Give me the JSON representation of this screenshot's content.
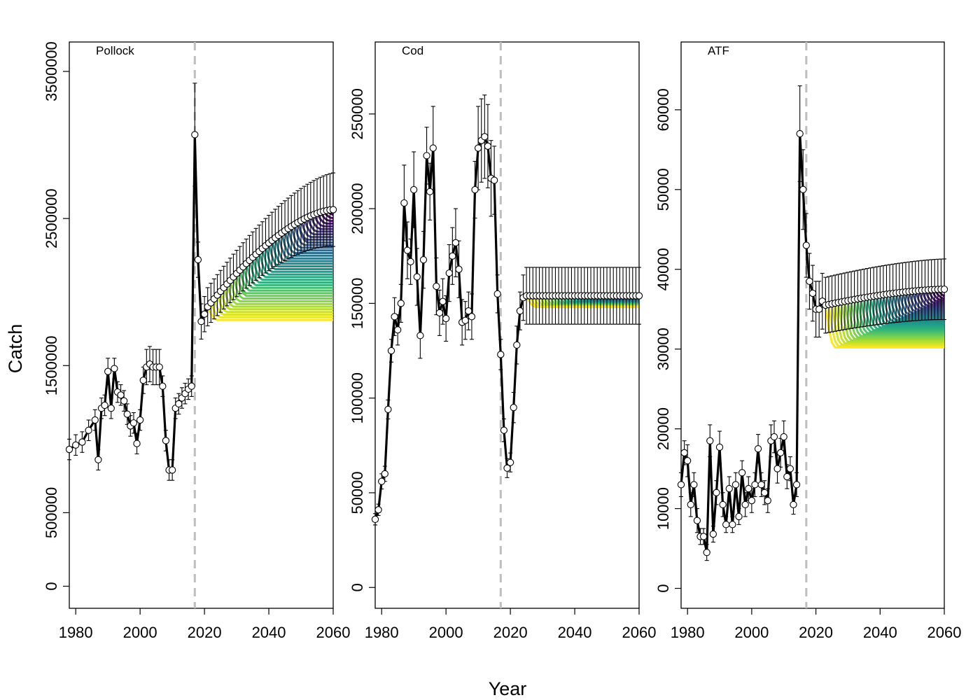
{
  "figure": {
    "xlabel": "Year",
    "ylabel": "Catch",
    "colors": {
      "observed_line": "#000000",
      "error_bar": "#000000",
      "marker_fill": "#ffffff",
      "divider": "#bebebe",
      "viridis_start": "#440154",
      "viridis_end": "#fde725"
    }
  },
  "chart_data": [
    {
      "type": "line",
      "panel": "Pollock",
      "title": "Pollock",
      "xlim": [
        1978,
        2060
      ],
      "ylim": [
        -150000,
        3700000
      ],
      "xticks": [
        1980,
        2000,
        2020,
        2040,
        2060
      ],
      "yticks": [
        0,
        500000,
        1500000,
        2500000,
        3500000
      ],
      "ytick_labels": [
        "0",
        "500000",
        "1500000",
        "2500000",
        "3500000"
      ],
      "divider_year": 2017,
      "observed": {
        "x": [
          1978,
          1980,
          1982,
          1984,
          1986,
          1987,
          1988,
          1989,
          1990,
          1991,
          1992,
          1993,
          1994,
          1995,
          1996,
          1997,
          1998,
          1999,
          2000,
          2001,
          2002,
          2003,
          2004,
          2005,
          2006,
          2007,
          2008,
          2009,
          2010,
          2011,
          2012,
          2013,
          2014,
          2015,
          2016,
          2017,
          2018,
          2019,
          2020
        ],
        "y": [
          930000,
          960000,
          980000,
          1060000,
          1130000,
          860000,
          1210000,
          1230000,
          1460000,
          1210000,
          1480000,
          1320000,
          1300000,
          1260000,
          1170000,
          1090000,
          1110000,
          970000,
          1130000,
          1400000,
          1490000,
          1510000,
          1490000,
          1490000,
          1490000,
          1360000,
          990000,
          790000,
          790000,
          1210000,
          1240000,
          1280000,
          1310000,
          1340000,
          1360000,
          3070000,
          2220000,
          1800000,
          1850000
        ],
        "err": [
          70000,
          70000,
          70000,
          70000,
          70000,
          70000,
          70000,
          70000,
          90000,
          70000,
          70000,
          70000,
          70000,
          70000,
          70000,
          70000,
          70000,
          70000,
          70000,
          90000,
          120000,
          120000,
          120000,
          120000,
          120000,
          70000,
          70000,
          70000,
          70000,
          70000,
          70000,
          70000,
          70000,
          70000,
          70000,
          350000,
          120000,
          120000,
          120000
        ]
      },
      "projection": {
        "start_year": 2021,
        "end_year": 2060,
        "mean_start": 1900000,
        "mean_end": 2560000,
        "err_start": 130000,
        "err_end": 250000,
        "scenario_count": 40,
        "scenario_plateau_low": 1810000,
        "scenario_plateau_high": 2520000
      }
    },
    {
      "type": "line",
      "panel": "Cod",
      "title": "Cod",
      "xlim": [
        1978,
        2060
      ],
      "ylim": [
        -11000,
        288000
      ],
      "xticks": [
        1980,
        2000,
        2020,
        2040,
        2060
      ],
      "yticks": [
        0,
        50000,
        100000,
        150000,
        200000,
        250000
      ],
      "ytick_labels": [
        "0",
        "50000",
        "100000",
        "150000",
        "200000",
        "250000"
      ],
      "divider_year": 2017,
      "observed": {
        "x": [
          1978,
          1979,
          1980,
          1981,
          1982,
          1983,
          1984,
          1985,
          1986,
          1987,
          1988,
          1989,
          1990,
          1991,
          1992,
          1993,
          1994,
          1995,
          1996,
          1997,
          1998,
          1999,
          2000,
          2001,
          2002,
          2003,
          2004,
          2005,
          2006,
          2007,
          2008,
          2009,
          2010,
          2011,
          2012,
          2013,
          2014,
          2015,
          2016,
          2017,
          2018,
          2019,
          2020,
          2021,
          2022,
          2023,
          2024
        ],
        "y": [
          36000,
          41000,
          56000,
          60000,
          94000,
          125000,
          143000,
          136000,
          150000,
          203000,
          178000,
          172000,
          210000,
          164000,
          133000,
          173000,
          228000,
          209000,
          232000,
          159000,
          145000,
          151000,
          142000,
          166000,
          175000,
          182000,
          168000,
          140000,
          141000,
          146000,
          143000,
          210000,
          232000,
          236000,
          238000,
          233000,
          216000,
          215000,
          155000,
          123000,
          83000,
          63000,
          66000,
          95000,
          128000,
          146000,
          153000
        ],
        "err": [
          3000,
          3000,
          4000,
          4000,
          5000,
          6000,
          10000,
          8000,
          10000,
          20000,
          15000,
          12000,
          20000,
          15000,
          12000,
          15000,
          15000,
          15000,
          22000,
          15000,
          12000,
          12000,
          12000,
          15000,
          15000,
          18000,
          15000,
          12000,
          10000,
          10000,
          12000,
          15000,
          22000,
          22000,
          22000,
          22000,
          20000,
          18000,
          10000,
          8000,
          6000,
          5000,
          5000,
          8000,
          10000,
          10000,
          12000
        ]
      },
      "projection": {
        "start_year": 2025,
        "end_year": 2060,
        "mean_start": 154000,
        "mean_end": 154000,
        "err_start": 15000,
        "err_end": 15000,
        "scenario_count": 36,
        "scenario_plateau_low": 148000,
        "scenario_plateau_high": 153000
      }
    },
    {
      "type": "line",
      "panel": "ATF",
      "title": "ATF",
      "xlim": [
        1978,
        2060
      ],
      "ylim": [
        -2500,
        68500
      ],
      "xticks": [
        1980,
        2000,
        2020,
        2040,
        2060
      ],
      "yticks": [
        0,
        10000,
        20000,
        30000,
        40000,
        50000,
        60000
      ],
      "ytick_labels": [
        "0",
        "10000",
        "20000",
        "30000",
        "40000",
        "50000",
        "60000"
      ],
      "divider_year": 2017,
      "observed": {
        "x": [
          1978,
          1979,
          1980,
          1981,
          1982,
          1983,
          1984,
          1985,
          1986,
          1987,
          1988,
          1989,
          1990,
          1991,
          1992,
          1993,
          1994,
          1995,
          1996,
          1997,
          1998,
          1999,
          2000,
          2001,
          2002,
          2003,
          2004,
          2005,
          2006,
          2007,
          2008,
          2009,
          2010,
          2011,
          2012,
          2013,
          2014,
          2015,
          2016,
          2017,
          2018,
          2019,
          2020,
          2021,
          2022
        ],
        "y": [
          13000,
          17000,
          16000,
          10500,
          13000,
          8500,
          6500,
          6500,
          4500,
          18500,
          6800,
          12000,
          17700,
          10500,
          8000,
          12500,
          8000,
          13000,
          9000,
          14500,
          10500,
          12500,
          11000,
          13000,
          17500,
          13000,
          12000,
          11000,
          18500,
          19000,
          15000,
          17000,
          19000,
          14000,
          15000,
          10500,
          13000,
          57000,
          50000,
          43000,
          38500,
          37000,
          35000,
          35000,
          36000
        ],
        "err": [
          1500,
          1500,
          2000,
          1500,
          1500,
          1500,
          1000,
          1000,
          1000,
          2000,
          1000,
          1500,
          2000,
          1500,
          1000,
          1500,
          1000,
          1500,
          1000,
          1500,
          1500,
          1500,
          1500,
          1500,
          1800,
          1500,
          1500,
          1500,
          2000,
          2000,
          1800,
          1800,
          2000,
          1500,
          1500,
          1200,
          1500,
          6000,
          5000,
          4000,
          3500,
          3500,
          3500,
          3500,
          3500
        ]
      },
      "projection": {
        "start_year": 2023,
        "end_year": 2060,
        "mean_start": 35500,
        "mean_end": 37500,
        "err_start": 3500,
        "err_end": 3800,
        "scenario_count": 36,
        "scenario_plateau_low": 30200,
        "scenario_plateau_high": 36500
      }
    }
  ]
}
